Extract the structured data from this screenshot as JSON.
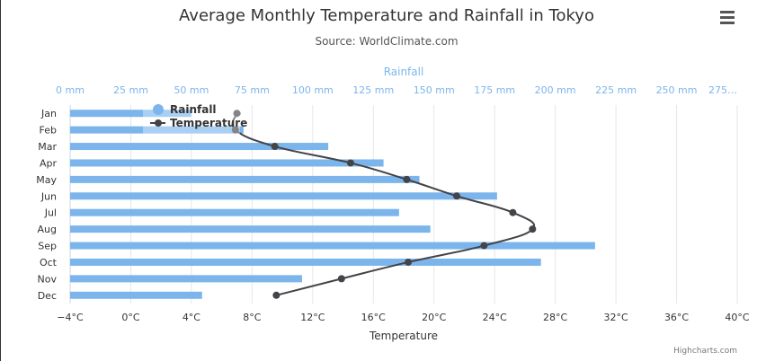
{
  "chart_data": {
    "type": "bar+line",
    "inverted": true,
    "title": "Average Monthly Temperature and Rainfall in Tokyo",
    "subtitle": "Source: WorldClimate.com",
    "categories": [
      "Jan",
      "Feb",
      "Mar",
      "Apr",
      "May",
      "Jun",
      "Jul",
      "Aug",
      "Sep",
      "Oct",
      "Nov",
      "Dec"
    ],
    "series": [
      {
        "name": "Rainfall",
        "type": "bar",
        "axis": "top",
        "unit": "mm",
        "color": "#7cb5ec",
        "values": [
          49.9,
          71.5,
          106.4,
          129.2,
          144.0,
          176.0,
          135.6,
          148.5,
          216.4,
          194.1,
          95.6,
          54.4
        ]
      },
      {
        "name": "Temperature",
        "type": "spline",
        "axis": "bottom",
        "unit": "°C",
        "color": "#434348",
        "values": [
          7.0,
          6.9,
          9.5,
          14.5,
          18.2,
          21.5,
          25.2,
          26.5,
          23.3,
          18.3,
          13.9,
          9.6
        ]
      }
    ],
    "top_axis": {
      "title": "Rainfall",
      "range": [
        0,
        275
      ],
      "ticks": [
        "0 mm",
        "25 mm",
        "50 mm",
        "75 mm",
        "100 mm",
        "125 mm",
        "150 mm",
        "175 mm",
        "200 mm",
        "225 mm",
        "250 mm",
        "275…"
      ],
      "color": "#7cb5ec"
    },
    "bottom_axis": {
      "title": "Temperature",
      "range": [
        -4,
        40
      ],
      "ticks": [
        "−4°C",
        "0°C",
        "4°C",
        "8°C",
        "12°C",
        "16°C",
        "20°C",
        "24°C",
        "28°C",
        "32°C",
        "36°C",
        "40°C"
      ]
    },
    "grid": true,
    "legend": "top-left floating",
    "credits": "Highcharts.com",
    "menu_icon": "hamburger-menu-icon"
  }
}
